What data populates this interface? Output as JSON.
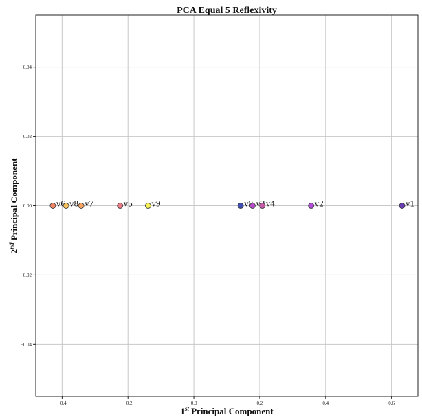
{
  "chart_data": {
    "type": "scatter",
    "title": "PCA Equal 5 Reflexivity",
    "xlabel": {
      "base": "1",
      "sup": "st",
      "rest": " Principal Component"
    },
    "ylabel": {
      "base": "2",
      "sup": "nd",
      "rest": " Principal Component"
    },
    "xlim": [
      -0.48,
      0.68
    ],
    "ylim": [
      -0.055,
      0.055
    ],
    "xticks": [
      -0.4,
      -0.2,
      0.0,
      0.2,
      0.4,
      0.6
    ],
    "xtick_labels": [
      "−0.4",
      "−0.2",
      "0.0",
      "0.2",
      "0.4",
      "0.6"
    ],
    "yticks": [
      0.04,
      0.02,
      0.0,
      -0.02,
      -0.04
    ],
    "ytick_labels": [
      "0.04",
      "0.02",
      "0.00",
      "−0.02",
      "−0.04"
    ],
    "grid": true,
    "points": [
      {
        "label": "v0",
        "x": 0.142,
        "y": 0.0,
        "color": "#3f4fb3"
      },
      {
        "label": "v1",
        "x": 0.632,
        "y": 0.0,
        "color": "#6a3fb6"
      },
      {
        "label": "v2",
        "x": 0.356,
        "y": 0.0,
        "color": "#b04fd6"
      },
      {
        "label": "v3",
        "x": 0.178,
        "y": 0.0,
        "color": "#b44fc8"
      },
      {
        "label": "v4",
        "x": 0.208,
        "y": 0.0,
        "color": "#c45aa8"
      },
      {
        "label": "v5",
        "x": -0.224,
        "y": 0.0,
        "color": "#ea7a84"
      },
      {
        "label": "v6",
        "x": -0.428,
        "y": 0.0,
        "color": "#ef8668"
      },
      {
        "label": "v7",
        "x": -0.342,
        "y": 0.0,
        "color": "#f5a262"
      },
      {
        "label": "v8",
        "x": -0.388,
        "y": 0.0,
        "color": "#f8c05a"
      },
      {
        "label": "v9",
        "x": -0.139,
        "y": 0.0,
        "color": "#f4f05a"
      }
    ]
  }
}
